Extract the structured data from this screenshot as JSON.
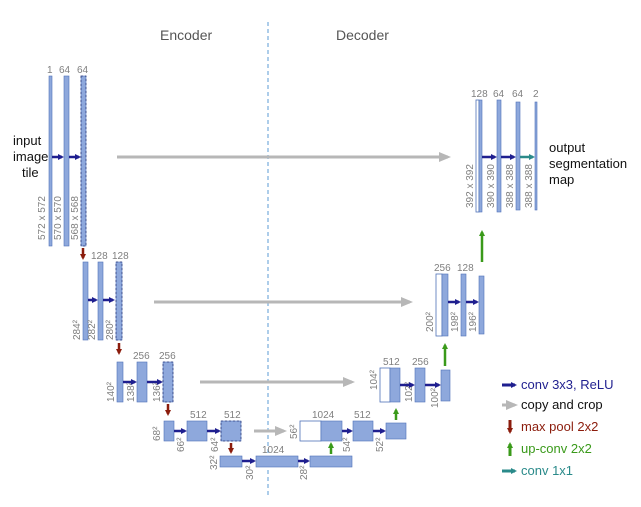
{
  "colors": {
    "block": "#8ea8dc",
    "block_stroke": "#4f72b8",
    "conv": "#1f1f8f",
    "copy": "#b7b7b7",
    "pool": "#8b1c0c",
    "upconv": "#3a9a1a",
    "conv1x1": "#2a8a8a",
    "divider": "#5b9bd5",
    "label": "#7f7f7f"
  },
  "headers": {
    "encoder": "Encoder",
    "decoder": "Decoder"
  },
  "input_label": [
    "input",
    "image",
    "tile"
  ],
  "output_label": [
    "output",
    "segmentation",
    "map"
  ],
  "channels": {
    "e1": [
      "1",
      "64",
      "64"
    ],
    "e2": [
      "128",
      "128"
    ],
    "e3": [
      "256",
      "256"
    ],
    "e4": [
      "512",
      "512"
    ],
    "b": "1024",
    "d4": [
      "1024",
      "512"
    ],
    "d3": [
      "512",
      "256"
    ],
    "d2": [
      "256",
      "128"
    ],
    "d1": [
      "128",
      "64",
      "64",
      "2"
    ]
  },
  "sizes": {
    "e1": [
      "572 x 572",
      "570 x 570",
      "568 x 568"
    ],
    "e2": [
      "284²",
      "282²",
      "280²"
    ],
    "e3": [
      "140²",
      "138²",
      "136²"
    ],
    "e4": [
      "68²",
      "66²",
      "64²"
    ],
    "b": [
      "32²",
      "30²",
      "28²"
    ],
    "d4": [
      "56²",
      "54²",
      "52²"
    ],
    "d3": [
      "104²",
      "102²",
      "100²"
    ],
    "d2": [
      "200²",
      "198²",
      "196²"
    ],
    "d1": [
      "392 x 392",
      "390 x 390",
      "388 x 388",
      "388 x 388"
    ]
  },
  "legend": [
    {
      "label": "conv 3x3, ReLU",
      "kind": "conv",
      "icon": "arrow-right-icon"
    },
    {
      "label": "copy and crop",
      "kind": "copy",
      "icon": "arrow-right-icon"
    },
    {
      "label": "max pool 2x2",
      "kind": "pool",
      "icon": "arrow-down-icon"
    },
    {
      "label": "up-conv 2x2",
      "kind": "upconv",
      "icon": "arrow-up-icon"
    },
    {
      "label": "conv 1x1",
      "kind": "conv1x1",
      "icon": "arrow-right-icon"
    }
  ]
}
